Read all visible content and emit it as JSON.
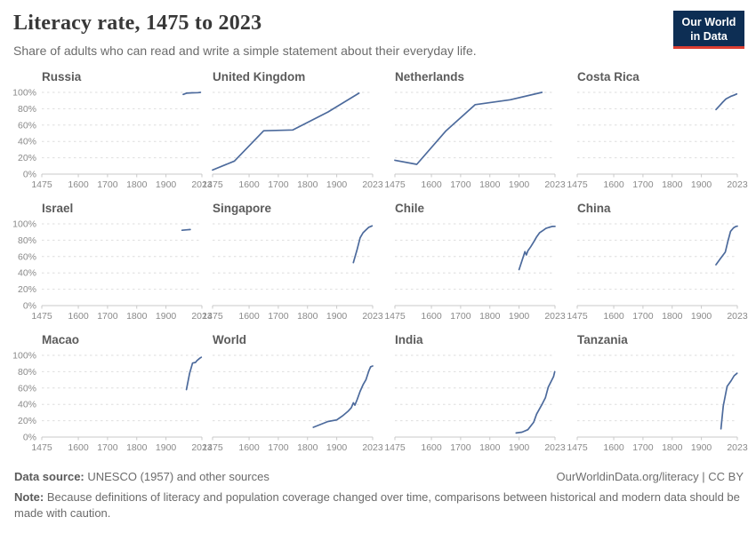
{
  "header": {
    "title": "Literacy rate, 1475 to 2023",
    "subtitle": "Share of adults who can read and write a simple statement about their everyday life.",
    "logo_line1": "Our World",
    "logo_line2": "in Data"
  },
  "footer": {
    "datasource_label": "Data source:",
    "datasource_text": " UNESCO (1957) and other sources",
    "credit": "OurWorldinData.org/literacy | CC BY",
    "note_label": "Note:",
    "note_text": " Because definitions of literacy and population coverage changed over time, comparisons between historical and modern data should be made with caution."
  },
  "colors": {
    "line": "#4c6a9c",
    "grid": "#dedede",
    "axis_line": "#c9c9c9",
    "tick_label": "#8a8a8a",
    "logo_bg": "#0d2e54",
    "logo_red": "#dc3e32"
  },
  "axes": {
    "xlim": [
      1475,
      2023
    ],
    "ylim": [
      0,
      100
    ],
    "x_ticks": [
      1475,
      1600,
      1700,
      1800,
      1900,
      2023
    ],
    "y_ticks": [
      0,
      20,
      40,
      60,
      80,
      100
    ],
    "y_tick_labels": [
      "0%",
      "20%",
      "40%",
      "60%",
      "80%",
      "100%"
    ],
    "grid": true,
    "legend": "none"
  },
  "chart_data": [
    {
      "type": "line",
      "title": "Russia",
      "show_y_axis": true,
      "x": [
        1959,
        1970,
        1989,
        2010,
        2018
      ],
      "y": [
        97.5,
        99,
        99.5,
        99.7,
        100
      ]
    },
    {
      "type": "line",
      "title": "United Kingdom",
      "show_y_axis": false,
      "x": [
        1475,
        1550,
        1650,
        1750,
        1870,
        1976
      ],
      "y": [
        5,
        16,
        53,
        54,
        76,
        99
      ]
    },
    {
      "type": "line",
      "title": "Netherlands",
      "show_y_axis": false,
      "x": [
        1475,
        1550,
        1650,
        1750,
        1870,
        1978
      ],
      "y": [
        17,
        12,
        53,
        85,
        91,
        100
      ]
    },
    {
      "type": "line",
      "title": "Costa Rica",
      "show_y_axis": false,
      "x": [
        1950,
        1963,
        1973,
        1984,
        2000,
        2011,
        2021
      ],
      "y": [
        79,
        84,
        88,
        92,
        95,
        96.5,
        98
      ]
    },
    {
      "type": "line",
      "title": "Israel",
      "show_y_axis": true,
      "x": [
        1955,
        1972,
        1983
      ],
      "y": [
        92.2,
        92.7,
        93
      ]
    },
    {
      "type": "line",
      "title": "Singapore",
      "show_y_axis": false,
      "x": [
        1957,
        1970,
        1980,
        1990,
        2000,
        2010,
        2021
      ],
      "y": [
        52.6,
        68.9,
        82.9,
        89.1,
        92.5,
        95.9,
        97.5
      ]
    },
    {
      "type": "line",
      "title": "Chile",
      "show_y_axis": false,
      "x": [
        1900,
        1920,
        1925,
        1930,
        1940,
        1952,
        1960,
        1970,
        1982,
        1992,
        2002,
        2013,
        2023
      ],
      "y": [
        44,
        66,
        62,
        67,
        72,
        79,
        84,
        89,
        92,
        94.5,
        95.7,
        96.9,
        97
      ]
    },
    {
      "type": "line",
      "title": "China",
      "show_y_axis": false,
      "x": [
        1950,
        1964,
        1982,
        1990,
        2000,
        2010,
        2018,
        2023
      ],
      "y": [
        50,
        57,
        65.5,
        77.8,
        90.9,
        95.1,
        96.8,
        97.2
      ]
    },
    {
      "type": "line",
      "title": "Macao",
      "show_y_axis": true,
      "x": [
        1970,
        1981,
        1991,
        2001,
        2006,
        2016,
        2021
      ],
      "y": [
        58,
        78,
        90.5,
        91.3,
        93.5,
        96.5,
        97.6
      ]
    },
    {
      "type": "line",
      "title": "World",
      "show_y_axis": false,
      "x": [
        1820,
        1870,
        1900,
        1920,
        1940,
        1950,
        1957,
        1962,
        1970,
        1980,
        1990,
        2000,
        2010,
        2016,
        2023
      ],
      "y": [
        12,
        19,
        21,
        26,
        32,
        36,
        42,
        39,
        46,
        56,
        64,
        70,
        81,
        86,
        87
      ]
    },
    {
      "type": "line",
      "title": "India",
      "show_y_axis": false,
      "x": [
        1890,
        1910,
        1930,
        1950,
        1960,
        1980,
        1990,
        2000,
        2011,
        2018,
        2022
      ],
      "y": [
        5,
        6,
        9,
        18,
        28,
        41,
        48,
        61,
        69,
        74,
        80
      ]
    },
    {
      "type": "line",
      "title": "Tanzania",
      "show_y_axis": false,
      "x": [
        1967,
        1975,
        1988,
        2002,
        2012,
        2022
      ],
      "y": [
        10,
        38,
        62,
        69,
        75,
        78
      ]
    }
  ]
}
